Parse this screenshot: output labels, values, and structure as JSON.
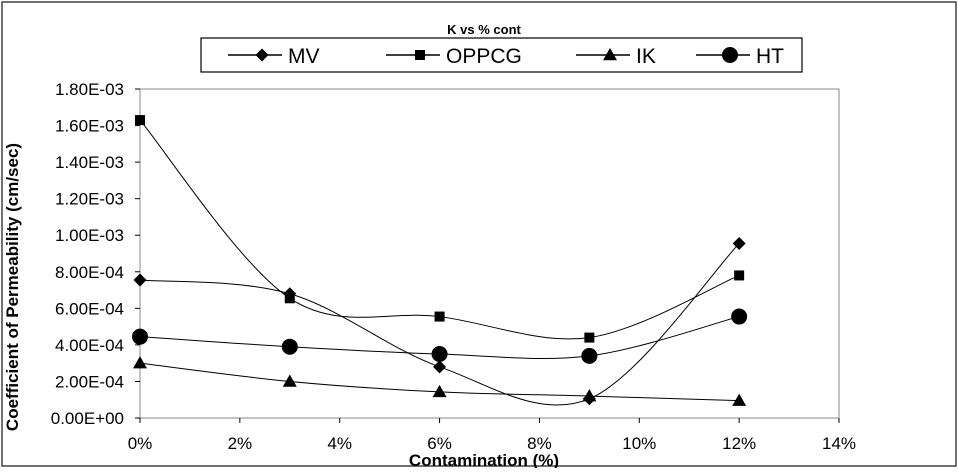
{
  "chart_data": {
    "type": "line",
    "title": "K vs % cont",
    "xlabel": "Contamination (%)",
    "ylabel": "Coefficient of Permeability (cm/sec)",
    "xlim": [
      0,
      14
    ],
    "ylim": [
      0,
      0.0018
    ],
    "x_ticks": [
      "0%",
      "2%",
      "4%",
      "6%",
      "8%",
      "10%",
      "12%",
      "14%"
    ],
    "y_ticks": [
      "0.00E+00",
      "2.00E-04",
      "4.00E-04",
      "6.00E-04",
      "8.00E-04",
      "1.00E-03",
      "1.20E-03",
      "1.40E-03",
      "1.60E-03",
      "1.80E-03"
    ],
    "x": [
      0,
      3,
      6,
      9,
      12
    ],
    "smoothed": true,
    "grid": false,
    "legend_position": "top",
    "series": [
      {
        "name": "MV",
        "marker": "diamond",
        "values": [
          0.000755,
          0.00068,
          0.00028,
          0.000105,
          0.000955
        ]
      },
      {
        "name": "OPPCG",
        "marker": "square",
        "values": [
          0.00163,
          0.000655,
          0.000555,
          0.00044,
          0.00078
        ]
      },
      {
        "name": "IK",
        "marker": "triangle",
        "values": [
          0.0003,
          0.0002,
          0.000143,
          0.00012,
          9.5e-05
        ]
      },
      {
        "name": "HT",
        "marker": "circle",
        "values": [
          0.000445,
          0.00039,
          0.00035,
          0.00034,
          0.000555
        ]
      }
    ]
  }
}
